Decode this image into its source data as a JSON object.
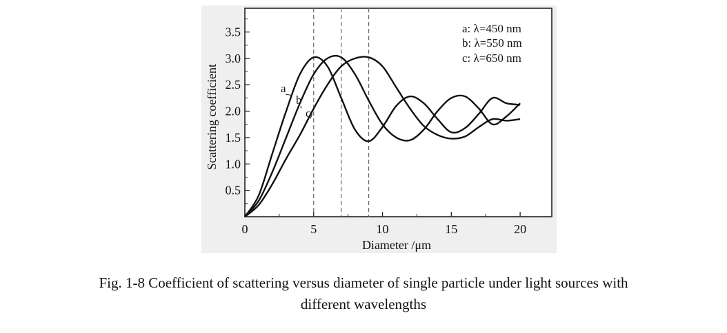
{
  "chart_data": {
    "type": "line",
    "xlabel": "Diameter /μm",
    "ylabel": "Scattering coefficient",
    "xlim": [
      0,
      22.3
    ],
    "ylim": [
      0,
      3.95
    ],
    "xticks": [
      0,
      5,
      10,
      15,
      20
    ],
    "yticks": [
      0.5,
      1.0,
      1.5,
      2.0,
      2.5,
      3.0,
      3.5
    ],
    "xtick_labels": [
      "0",
      "5",
      "10",
      "15",
      "20"
    ],
    "ytick_labels": [
      "0.5",
      "1.0",
      "1.5",
      "2.0",
      "2.5",
      "3.0",
      "3.5"
    ],
    "grid": false,
    "legend_position": "top-right",
    "legend": [
      "a: λ=450 nm",
      "b: λ=550 nm",
      "c: λ=650 nm"
    ],
    "vlines": [
      5,
      7,
      9
    ],
    "series": [
      {
        "label": "a",
        "x": [
          0,
          1,
          2,
          3,
          4,
          5,
          6,
          7,
          8,
          9,
          10,
          11,
          12,
          13,
          14,
          15,
          16,
          17,
          18,
          19,
          20
        ],
        "y": [
          0,
          0.4,
          1.2,
          2.0,
          2.7,
          3.02,
          2.85,
          2.25,
          1.65,
          1.43,
          1.7,
          2.1,
          2.28,
          2.15,
          1.85,
          1.6,
          1.68,
          1.95,
          2.25,
          2.15,
          2.12
        ]
      },
      {
        "label": "b",
        "x": [
          0,
          1,
          2,
          3,
          4,
          5,
          6,
          7,
          8,
          9,
          10,
          11,
          12,
          13,
          14,
          15,
          16,
          17,
          18,
          19,
          20
        ],
        "y": [
          0,
          0.3,
          0.85,
          1.5,
          2.15,
          2.7,
          3.0,
          3.02,
          2.7,
          2.2,
          1.75,
          1.5,
          1.45,
          1.65,
          2.0,
          2.25,
          2.28,
          2.05,
          1.75,
          1.9,
          2.15
        ]
      },
      {
        "label": "c",
        "x": [
          0,
          1,
          2,
          3,
          4,
          5,
          6,
          7,
          8,
          9,
          10,
          11,
          12,
          13,
          14,
          15,
          16,
          17,
          18,
          19,
          20
        ],
        "y": [
          0,
          0.22,
          0.62,
          1.1,
          1.55,
          2.05,
          2.5,
          2.85,
          3.0,
          3.02,
          2.85,
          2.45,
          2.05,
          1.72,
          1.55,
          1.48,
          1.52,
          1.7,
          1.85,
          1.82,
          1.85
        ]
      }
    ]
  },
  "caption": {
    "line1": "Fig. 1-8 Coefficient of scattering versus diameter of single particle under light sources with",
    "line2": "different wavelengths"
  }
}
